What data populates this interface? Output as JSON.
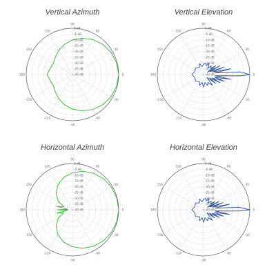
{
  "chart_data": [
    {
      "type": "polar",
      "title": "Vertical Azimuth",
      "series_color": "#3cab3c",
      "angle_labels": [
        "0",
        "30",
        "60",
        "90",
        "120",
        "150",
        "180",
        "-150",
        "-120",
        "-90",
        "-60",
        "-30"
      ],
      "radial_labels": [
        "0 dB",
        "-5 dB",
        "-10 dB",
        "-15 dB",
        "-20 dB",
        "-25 dB",
        "-30 dB",
        "-35 dB",
        "-40 dB"
      ],
      "rlim": [
        -40,
        0
      ],
      "grid": true,
      "series": [
        {
          "angle_deg": [
            0,
            15,
            30,
            45,
            60,
            75,
            90,
            105,
            120,
            135,
            150,
            165,
            180,
            195,
            210,
            225,
            240,
            255,
            270,
            285,
            300,
            315,
            330,
            345
          ],
          "gain_db": [
            0,
            -0.5,
            -1.5,
            -3,
            -5,
            -7.5,
            -10,
            -13,
            -16,
            -19,
            -21,
            -20,
            -18,
            -20,
            -21,
            -19,
            -16,
            -13,
            -10,
            -7.5,
            -5,
            -3,
            -1.5,
            -0.5
          ]
        }
      ]
    },
    {
      "type": "polar",
      "title": "Vertical Elevation",
      "series_color": "#2b4f8f",
      "angle_labels": [
        "0",
        "30",
        "60",
        "90",
        "120",
        "150",
        "180",
        "-150",
        "-120",
        "-90",
        "-60",
        "-30"
      ],
      "radial_labels": [
        "0 dB",
        "-5 dB",
        "-10 dB",
        "-15 dB",
        "-20 dB",
        "-25 dB",
        "-30 dB",
        "-35 dB",
        "-40 dB"
      ],
      "rlim": [
        -40,
        0
      ],
      "grid": true,
      "series": [
        {
          "angle_deg": [
            0,
            4,
            8,
            12,
            16,
            20,
            24,
            28,
            32,
            36,
            40,
            48,
            56,
            64,
            72,
            80,
            90,
            100,
            110,
            120,
            140,
            160,
            180,
            200,
            220,
            240,
            250,
            260,
            270,
            280,
            290,
            300,
            310,
            318,
            324,
            330,
            334,
            338,
            342,
            346,
            350,
            354,
            358
          ],
          "gain_db": [
            0,
            -8,
            -30,
            -16,
            -32,
            -21,
            -34,
            -24,
            -36,
            -27,
            -32,
            -30,
            -33,
            -29,
            -32,
            -30,
            -31,
            -33,
            -30,
            -33,
            -31,
            -32,
            -30,
            -32,
            -31,
            -33,
            -30,
            -33,
            -29,
            -33,
            -30,
            -32,
            -28,
            -36,
            -27,
            -34,
            -24,
            -32,
            -21,
            -30,
            -16,
            -30,
            -8
          ]
        }
      ]
    },
    {
      "type": "polar",
      "title": "Horizontal Azimuth",
      "series_color": "#3cab3c",
      "angle_labels": [
        "0",
        "30",
        "60",
        "90",
        "120",
        "150",
        "180",
        "-150",
        "-120",
        "-90",
        "-60",
        "-30"
      ],
      "radial_labels": [
        "0 dB",
        "-5 dB",
        "-10 dB",
        "-15 dB",
        "-20 dB",
        "-25 dB",
        "-30 dB",
        "-35 dB",
        "-40 dB"
      ],
      "rlim": [
        -40,
        0
      ],
      "grid": true,
      "series": [
        {
          "angle_deg": [
            0,
            15,
            30,
            45,
            60,
            75,
            90,
            105,
            120,
            135,
            150,
            160,
            168,
            174,
            180,
            186,
            192,
            200,
            210,
            225,
            240,
            255,
            270,
            285,
            300,
            315,
            330,
            345
          ],
          "gain_db": [
            0,
            -0.3,
            -1,
            -2,
            -3.5,
            -5.5,
            -8,
            -11,
            -15,
            -20,
            -26,
            -32,
            -26,
            -36,
            -27,
            -36,
            -26,
            -32,
            -26,
            -20,
            -15,
            -11,
            -8,
            -5.5,
            -3.5,
            -2,
            -1,
            -0.3
          ]
        }
      ]
    },
    {
      "type": "polar",
      "title": "Horizontal Elevation",
      "series_color": "#2b4f8f",
      "angle_labels": [
        "0",
        "30",
        "60",
        "90",
        "120",
        "150",
        "180",
        "-150",
        "-120",
        "-90",
        "-60",
        "-30"
      ],
      "radial_labels": [
        "0 dB",
        "-5 dB",
        "-10 dB",
        "-15 dB",
        "-20 dB",
        "-25 dB",
        "-30 dB",
        "-35 dB",
        "-40 dB"
      ],
      "rlim": [
        -40,
        0
      ],
      "grid": true,
      "series": [
        {
          "angle_deg": [
            0,
            4,
            8,
            12,
            16,
            20,
            24,
            28,
            32,
            36,
            40,
            48,
            56,
            64,
            72,
            80,
            90,
            100,
            110,
            120,
            140,
            160,
            180,
            200,
            220,
            240,
            250,
            260,
            270,
            280,
            290,
            300,
            310,
            318,
            324,
            330,
            334,
            338,
            342,
            346,
            350,
            354,
            358
          ],
          "gain_db": [
            0,
            -9,
            -30,
            -17,
            -32,
            -22,
            -34,
            -25,
            -36,
            -28,
            -32,
            -30,
            -33,
            -29,
            -32,
            -30,
            -31,
            -33,
            -30,
            -33,
            -31,
            -32,
            -30,
            -32,
            -31,
            -33,
            -30,
            -33,
            -29,
            -33,
            -30,
            -32,
            -28,
            -36,
            -28,
            -34,
            -25,
            -32,
            -22,
            -30,
            -17,
            -30,
            -9
          ]
        }
      ]
    }
  ]
}
